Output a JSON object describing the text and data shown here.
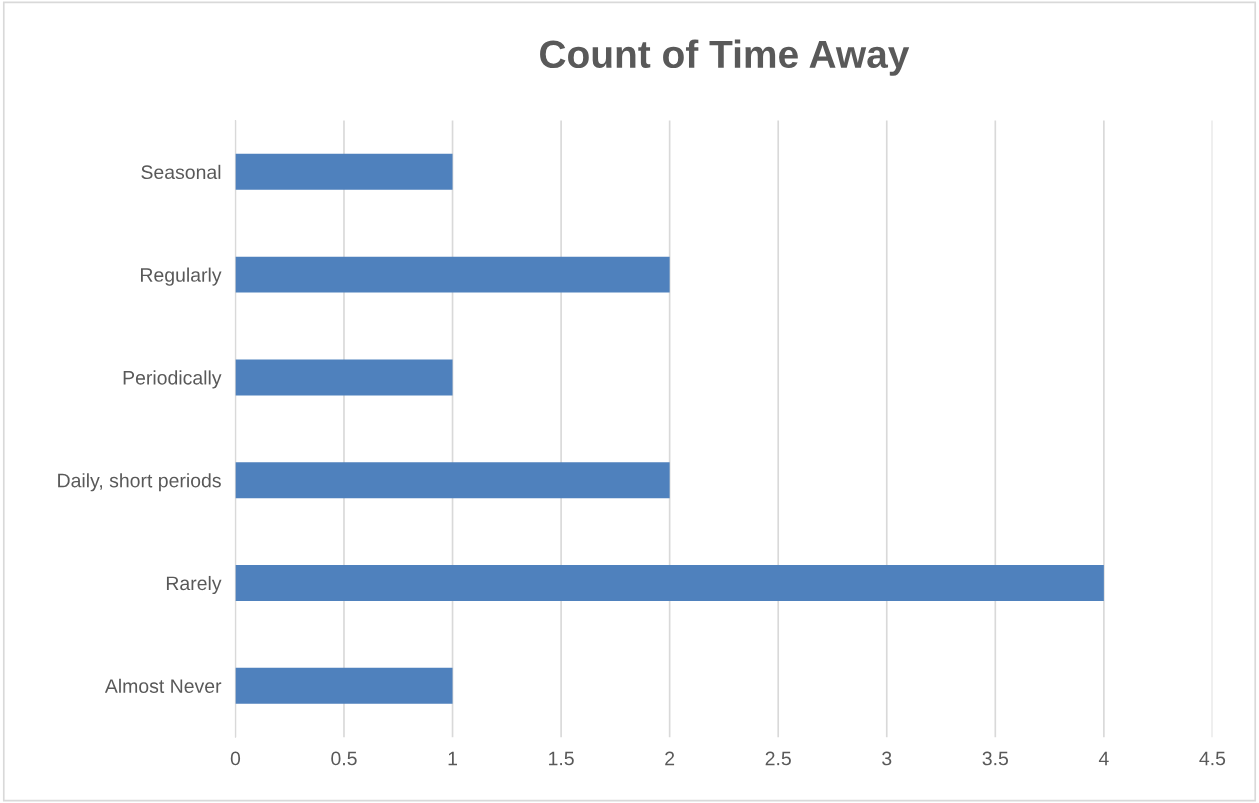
{
  "chart_data": {
    "type": "bar",
    "orientation": "horizontal",
    "title": "Count of Time Away",
    "categories": [
      "Seasonal",
      "Regularly",
      "Periodically",
      "Daily, short periods",
      "Rarely",
      "Almost Never"
    ],
    "values": [
      1,
      2,
      1,
      2,
      4,
      1
    ],
    "color": "#4f81bd",
    "xlim": [
      0,
      4.5
    ],
    "xticks": [
      0,
      0.5,
      1,
      1.5,
      2,
      2.5,
      3,
      3.5,
      4,
      4.5
    ],
    "grid": "x"
  }
}
